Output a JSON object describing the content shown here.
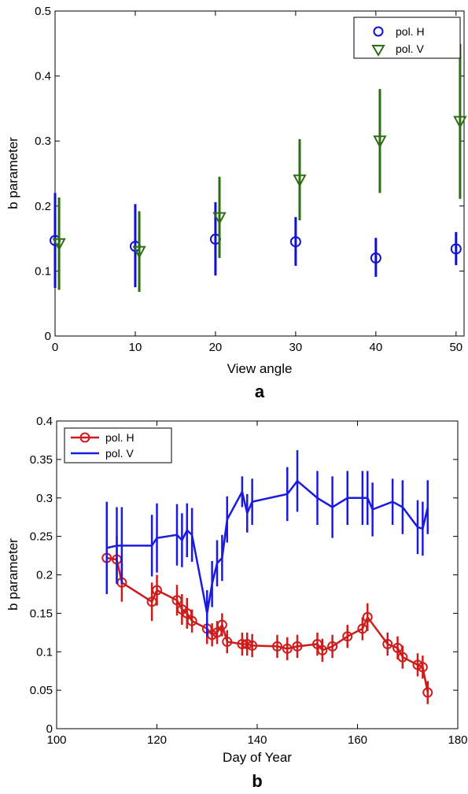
{
  "chart_data": [
    {
      "type": "scatter",
      "panel_label": "a",
      "xlabel": "View angle",
      "ylabel": "b parameter",
      "xlim": [
        0,
        51
      ],
      "ylim": [
        0,
        0.5
      ],
      "xticks": [
        "0",
        "10",
        "20",
        "30",
        "40",
        "50"
      ],
      "yticks": [
        "0",
        "0.1",
        "0.2",
        "0.3",
        "0.4",
        "0.5"
      ],
      "grid": false,
      "legend_position": "top-right",
      "series": [
        {
          "name": "pol. H",
          "color": "#1010d0",
          "marker": "circle",
          "points": [
            {
              "x": 0,
              "y": 0.147,
              "lo": 0.074,
              "hi": 0.22
            },
            {
              "x": 10,
              "y": 0.138,
              "lo": 0.075,
              "hi": 0.203
            },
            {
              "x": 20,
              "y": 0.149,
              "lo": 0.093,
              "hi": 0.206
            },
            {
              "x": 30,
              "y": 0.145,
              "lo": 0.108,
              "hi": 0.183
            },
            {
              "x": 40,
              "y": 0.12,
              "lo": 0.091,
              "hi": 0.151
            },
            {
              "x": 50,
              "y": 0.134,
              "lo": 0.109,
              "hi": 0.16
            }
          ]
        },
        {
          "name": "pol. V",
          "color": "#2d6f10",
          "marker": "triangle-down",
          "points": [
            {
              "x": 0.5,
              "y": 0.142,
              "lo": 0.071,
              "hi": 0.213
            },
            {
              "x": 10.5,
              "y": 0.13,
              "lo": 0.068,
              "hi": 0.192
            },
            {
              "x": 20.5,
              "y": 0.182,
              "lo": 0.12,
              "hi": 0.245
            },
            {
              "x": 30.5,
              "y": 0.24,
              "lo": 0.178,
              "hi": 0.303
            },
            {
              "x": 40.5,
              "y": 0.3,
              "lo": 0.22,
              "hi": 0.38
            },
            {
              "x": 50.5,
              "y": 0.33,
              "lo": 0.211,
              "hi": 0.449
            }
          ]
        }
      ]
    },
    {
      "type": "line",
      "panel_label": "b",
      "xlabel": "Day of Year",
      "ylabel": "b parameter",
      "xlim": [
        100,
        180
      ],
      "ylim": [
        0,
        0.4
      ],
      "xticks": [
        "100",
        "120",
        "140",
        "160",
        "180"
      ],
      "yticks": [
        "0",
        "0.05",
        "0.1",
        "0.15",
        "0.2",
        "0.25",
        "0.3",
        "0.35",
        "0.4"
      ],
      "grid": false,
      "legend_position": "top-left",
      "series": [
        {
          "name": "pol. H",
          "color": "#cc1c1c",
          "marker": "circle",
          "points": [
            {
              "x": 110,
              "y": 0.222,
              "e": 0.04
            },
            {
              "x": 112,
              "y": 0.22,
              "e": 0.03
            },
            {
              "x": 113,
              "y": 0.19,
              "e": 0.025
            },
            {
              "x": 119,
              "y": 0.165,
              "e": 0.025
            },
            {
              "x": 120,
              "y": 0.18,
              "e": 0.02
            },
            {
              "x": 124,
              "y": 0.167,
              "e": 0.02
            },
            {
              "x": 125,
              "y": 0.155,
              "e": 0.02
            },
            {
              "x": 126,
              "y": 0.15,
              "e": 0.02
            },
            {
              "x": 127,
              "y": 0.14,
              "e": 0.015
            },
            {
              "x": 130,
              "y": 0.13,
              "e": 0.02
            },
            {
              "x": 131,
              "y": 0.122,
              "e": 0.015
            },
            {
              "x": 132,
              "y": 0.125,
              "e": 0.015
            },
            {
              "x": 133,
              "y": 0.135,
              "e": 0.015
            },
            {
              "x": 134,
              "y": 0.113,
              "e": 0.015
            },
            {
              "x": 137,
              "y": 0.11,
              "e": 0.015
            },
            {
              "x": 138,
              "y": 0.11,
              "e": 0.015
            },
            {
              "x": 139,
              "y": 0.108,
              "e": 0.015
            },
            {
              "x": 144,
              "y": 0.107,
              "e": 0.015
            },
            {
              "x": 146,
              "y": 0.104,
              "e": 0.015
            },
            {
              "x": 148,
              "y": 0.107,
              "e": 0.015
            },
            {
              "x": 152,
              "y": 0.11,
              "e": 0.015
            },
            {
              "x": 153,
              "y": 0.102,
              "e": 0.015
            },
            {
              "x": 155,
              "y": 0.107,
              "e": 0.015
            },
            {
              "x": 158,
              "y": 0.12,
              "e": 0.015
            },
            {
              "x": 161,
              "y": 0.13,
              "e": 0.015
            },
            {
              "x": 162,
              "y": 0.145,
              "e": 0.018
            },
            {
              "x": 166,
              "y": 0.11,
              "e": 0.015
            },
            {
              "x": 168,
              "y": 0.105,
              "e": 0.015
            },
            {
              "x": 169,
              "y": 0.093,
              "e": 0.015
            },
            {
              "x": 172,
              "y": 0.083,
              "e": 0.015
            },
            {
              "x": 173,
              "y": 0.08,
              "e": 0.015
            },
            {
              "x": 174,
              "y": 0.047,
              "e": 0.015
            }
          ]
        },
        {
          "name": "pol. V",
          "color": "#1a1ae0",
          "marker": "none",
          "points": [
            {
              "x": 110,
              "y": 0.235,
              "e": 0.06
            },
            {
              "x": 112,
              "y": 0.238,
              "e": 0.05
            },
            {
              "x": 113,
              "y": 0.238,
              "e": 0.05
            },
            {
              "x": 119,
              "y": 0.238,
              "e": 0.04
            },
            {
              "x": 120,
              "y": 0.248,
              "e": 0.045
            },
            {
              "x": 124,
              "y": 0.252,
              "e": 0.04
            },
            {
              "x": 125,
              "y": 0.245,
              "e": 0.035
            },
            {
              "x": 126,
              "y": 0.258,
              "e": 0.035
            },
            {
              "x": 127,
              "y": 0.252,
              "e": 0.035
            },
            {
              "x": 130,
              "y": 0.15,
              "e": 0.03
            },
            {
              "x": 131,
              "y": 0.188,
              "e": 0.03
            },
            {
              "x": 132,
              "y": 0.215,
              "e": 0.03
            },
            {
              "x": 133,
              "y": 0.222,
              "e": 0.03
            },
            {
              "x": 134,
              "y": 0.272,
              "e": 0.03
            },
            {
              "x": 137,
              "y": 0.308,
              "e": 0.02
            },
            {
              "x": 138,
              "y": 0.28,
              "e": 0.025
            },
            {
              "x": 139,
              "y": 0.295,
              "e": 0.03
            },
            {
              "x": 146,
              "y": 0.305,
              "e": 0.035
            },
            {
              "x": 148,
              "y": 0.322,
              "e": 0.04
            },
            {
              "x": 152,
              "y": 0.3,
              "e": 0.035
            },
            {
              "x": 155,
              "y": 0.288,
              "e": 0.04
            },
            {
              "x": 158,
              "y": 0.3,
              "e": 0.035
            },
            {
              "x": 161,
              "y": 0.3,
              "e": 0.035
            },
            {
              "x": 162,
              "y": 0.3,
              "e": 0.035
            },
            {
              "x": 163,
              "y": 0.285,
              "e": 0.035
            },
            {
              "x": 167,
              "y": 0.295,
              "e": 0.03
            },
            {
              "x": 169,
              "y": 0.288,
              "e": 0.035
            },
            {
              "x": 172,
              "y": 0.262,
              "e": 0.035
            },
            {
              "x": 173,
              "y": 0.26,
              "e": 0.035
            },
            {
              "x": 174,
              "y": 0.288,
              "e": 0.035
            }
          ]
        }
      ]
    }
  ]
}
